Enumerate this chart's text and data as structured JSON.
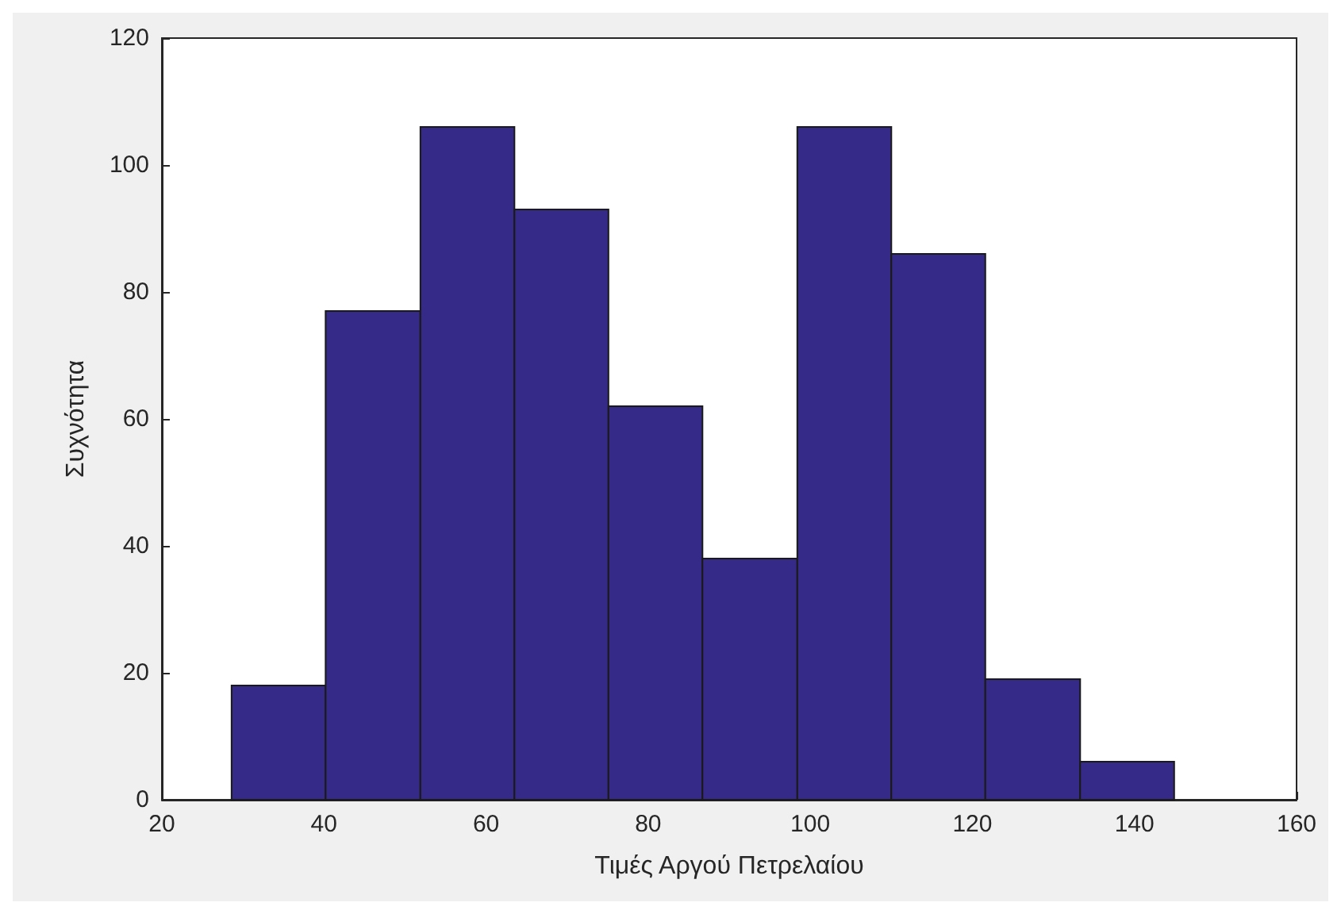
{
  "chart_data": {
    "type": "histogram",
    "xlabel": "Τιμές Αργού Πετρελαίου",
    "ylabel": "Συχνότητα",
    "bins": [
      28.6,
      40.2,
      51.9,
      63.5,
      75.1,
      86.7,
      98.4,
      110.0,
      121.6,
      133.3,
      144.9
    ],
    "values": [
      18,
      77,
      106,
      93,
      62,
      38,
      106,
      86,
      19,
      6
    ],
    "color": "#352a87",
    "xlim": [
      20,
      160
    ],
    "xticks": [
      20,
      40,
      60,
      80,
      100,
      120,
      140,
      160
    ],
    "ylim": [
      0,
      120
    ],
    "yticks": [
      0,
      20,
      40,
      60,
      80,
      100,
      120
    ],
    "grid": false
  }
}
